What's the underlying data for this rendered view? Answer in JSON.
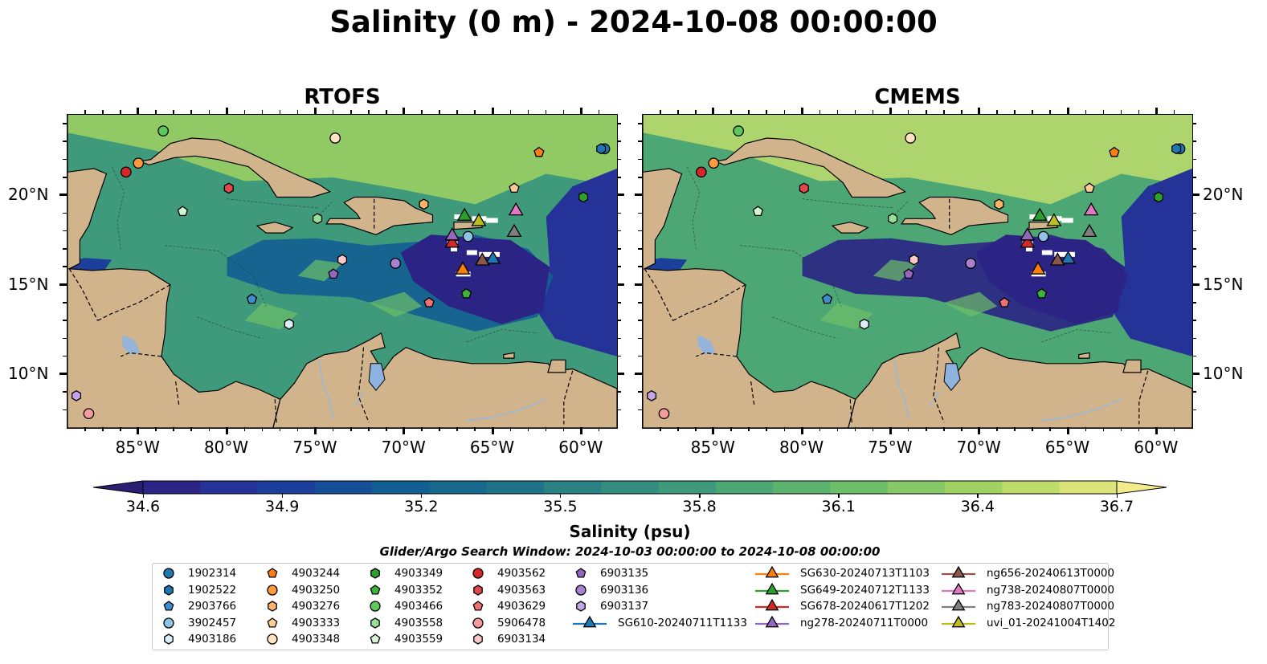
{
  "title": "Salinity (0 m) - 2024-10-08 00:00:00",
  "panels": [
    {
      "title": "RTOFS"
    },
    {
      "title": "CMEMS"
    }
  ],
  "lon_ticks": [
    "85°W",
    "80°W",
    "75°W",
    "70°W",
    "65°W",
    "60°W"
  ],
  "lat_ticks": [
    "20°N",
    "15°N",
    "10°N"
  ],
  "colorbar": {
    "min": 34.6,
    "max": 36.7,
    "tick_labels": [
      "34.6",
      "34.9",
      "35.2",
      "35.5",
      "35.8",
      "36.1",
      "36.4",
      "36.7"
    ],
    "label": "Salinity (psu)",
    "colors": [
      "#2a1f72",
      "#2b2485",
      "#253297",
      "#1d3f9c",
      "#154f98",
      "#135e92",
      "#17698d",
      "#1f7587",
      "#2a8283",
      "#348e80",
      "#3f997b",
      "#4da775",
      "#5cb36f",
      "#6dbf68",
      "#86c966",
      "#a0d262",
      "#bedc6c",
      "#dbe47a",
      "#f3ec8c"
    ]
  },
  "search_window": "Glider/Argo Search Window: 2024-10-03 00:00:00 to 2024-10-08 00:00:00",
  "legend": {
    "argo": [
      {
        "label": "1902314",
        "marker": "circle",
        "color": "#1f77b4"
      },
      {
        "label": "1902522",
        "marker": "hexagon",
        "color": "#1f77b4"
      },
      {
        "label": "2903766",
        "marker": "pentagon",
        "color": "#3b8fd1"
      },
      {
        "label": "3902457",
        "marker": "circle",
        "color": "#8ec3e8"
      },
      {
        "label": "4903186",
        "marker": "hexagon",
        "color": "#dbeefa"
      },
      {
        "label": "4903244",
        "marker": "pentagon",
        "color": "#ff7f0e"
      },
      {
        "label": "4903250",
        "marker": "circle",
        "color": "#ff9a3c"
      },
      {
        "label": "4903276",
        "marker": "hexagon",
        "color": "#ffb36b"
      },
      {
        "label": "4903333",
        "marker": "pentagon",
        "color": "#ffcc96"
      },
      {
        "label": "4903348",
        "marker": "circle",
        "color": "#ffe3c4"
      },
      {
        "label": "4903349",
        "marker": "hexagon",
        "color": "#2ca02c"
      },
      {
        "label": "4903352",
        "marker": "pentagon",
        "color": "#3cb43c"
      },
      {
        "label": "4903466",
        "marker": "circle",
        "color": "#5dc85d"
      },
      {
        "label": "4903558",
        "marker": "hexagon",
        "color": "#98e098"
      },
      {
        "label": "4903559",
        "marker": "pentagon",
        "color": "#d2f5d2"
      },
      {
        "label": "4903562",
        "marker": "circle",
        "color": "#d62728"
      },
      {
        "label": "4903563",
        "marker": "hexagon",
        "color": "#e44848"
      },
      {
        "label": "4903629",
        "marker": "pentagon",
        "color": "#ee7070"
      },
      {
        "label": "5906478",
        "marker": "circle",
        "color": "#f59b9b"
      },
      {
        "label": "6903134",
        "marker": "hexagon",
        "color": "#fcc9c9"
      },
      {
        "label": "6903135",
        "marker": "pentagon",
        "color": "#9467bd"
      },
      {
        "label": "6903136",
        "marker": "circle",
        "color": "#a782cf"
      },
      {
        "label": "6903137",
        "marker": "hexagon",
        "color": "#c4a5e6"
      }
    ],
    "gliders": [
      {
        "label": "SG610-20240711T1133",
        "color": "#1f77b4"
      },
      {
        "label": "SG630-20240713T1103",
        "color": "#ff7f0e"
      },
      {
        "label": "SG649-20240712T1133",
        "color": "#2ca02c"
      },
      {
        "label": "SG678-20240617T1202",
        "color": "#d62728"
      },
      {
        "label": "ng278-20240711T0000",
        "color": "#9467bd"
      },
      {
        "label": "ng656-20240613T0000",
        "color": "#8c564b"
      },
      {
        "label": "ng738-20240807T0000",
        "color": "#e377c2"
      },
      {
        "label": "ng783-20240807T0000",
        "color": "#7f7f7f"
      },
      {
        "label": "uvi_01-20241004T1402",
        "color": "#bcbd22"
      }
    ]
  },
  "map": {
    "land_color": "#d2b48c",
    "lake_color": "#8fb3e0",
    "river_color": "#9ab8d8",
    "extent_lon": [
      -89,
      -58
    ],
    "extent_lat": [
      7,
      24.5
    ]
  }
}
